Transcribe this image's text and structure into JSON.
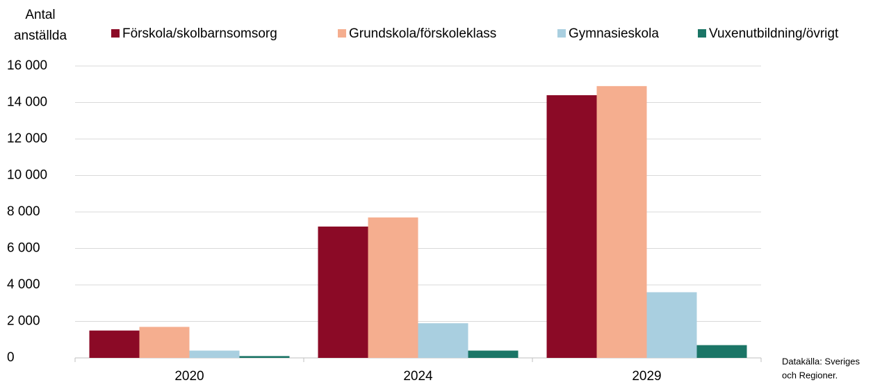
{
  "chart_data": {
    "type": "bar",
    "ylabel": [
      "Antal",
      "anställda"
    ],
    "categories": [
      "2020",
      "2024",
      "2029"
    ],
    "series": [
      {
        "name": "Förskola/skolbarnsomsorg",
        "color": "#8b0a26",
        "values": [
          1500,
          7200,
          14400
        ]
      },
      {
        "name": "Grundskola/förskoleklass",
        "color": "#f5ae8f",
        "values": [
          1700,
          7700,
          14900
        ]
      },
      {
        "name": "Gymnasieskola",
        "color": "#a9cfe0",
        "values": [
          400,
          1900,
          3600
        ]
      },
      {
        "name": "Vuxenutbildning/övrigt",
        "color": "#1b7566",
        "values": [
          100,
          400,
          700
        ]
      }
    ],
    "ylim": [
      0,
      16000
    ],
    "yticks": [
      0,
      {
        "value": 2000,
        "label": "2 000"
      },
      {
        "value": 4000,
        "label": "4 000"
      },
      {
        "value": 6000,
        "label": "6 000"
      },
      {
        "value": 8000,
        "label": "8 000"
      },
      {
        "value": 10000,
        "label": "10 000"
      },
      {
        "value": 12000,
        "label": "12 000"
      },
      {
        "value": 14000,
        "label": "14 000"
      },
      {
        "value": 16000,
        "label": "16 000"
      }
    ],
    "grid": true,
    "source": [
      "Datakälla: Sveriges",
      "och Regioner."
    ]
  }
}
